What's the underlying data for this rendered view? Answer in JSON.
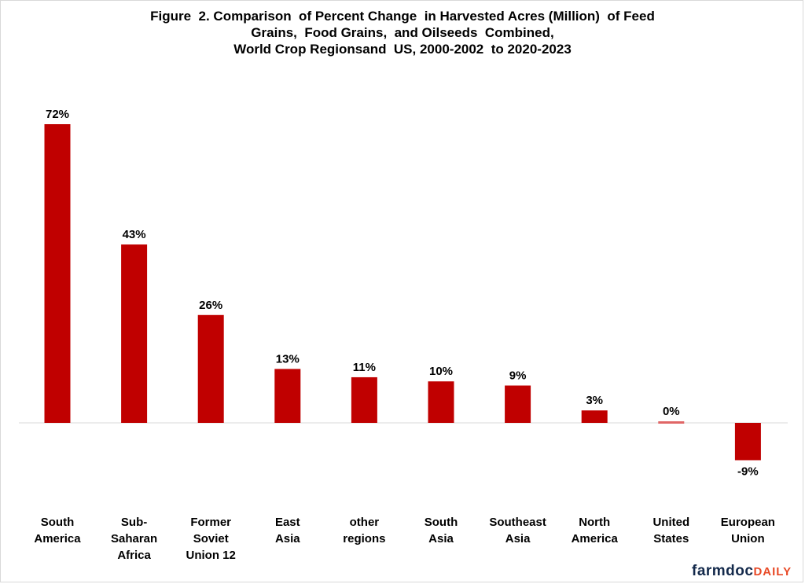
{
  "chart_data": {
    "type": "bar",
    "title_lines": [
      "Figure  2. Comparison  of Percent Change  in Harvested Acres (Million)  of Feed",
      "Grains,  Food Grains,  and Oilseeds  Combined,",
      "World Crop Regionsand  US, 2000-2002  to 2020-2023"
    ],
    "categories": [
      [
        "South",
        "America"
      ],
      [
        "Sub-",
        "Saharan",
        "Africa"
      ],
      [
        "Former",
        "Soviet",
        "Union 12"
      ],
      [
        "East",
        "Asia"
      ],
      [
        "other",
        "regions"
      ],
      [
        "South",
        "Asia"
      ],
      [
        "Southeast",
        "Asia"
      ],
      [
        "North",
        "America"
      ],
      [
        "United",
        "States"
      ],
      [
        "European",
        "Union"
      ]
    ],
    "values": [
      72,
      43,
      26,
      13,
      11,
      10,
      9,
      3,
      0,
      -9
    ],
    "data_labels": [
      "72%",
      "43%",
      "26%",
      "13%",
      "11%",
      "10%",
      "9%",
      "3%",
      "0%",
      "-9%"
    ],
    "ylim": [
      -9,
      72
    ],
    "grid": false,
    "legend": "none",
    "bar_color": "#c00000",
    "zero_bar_color": "#e06666"
  },
  "brand": {
    "part1": "farmdoc",
    "part2": "DAILY"
  }
}
